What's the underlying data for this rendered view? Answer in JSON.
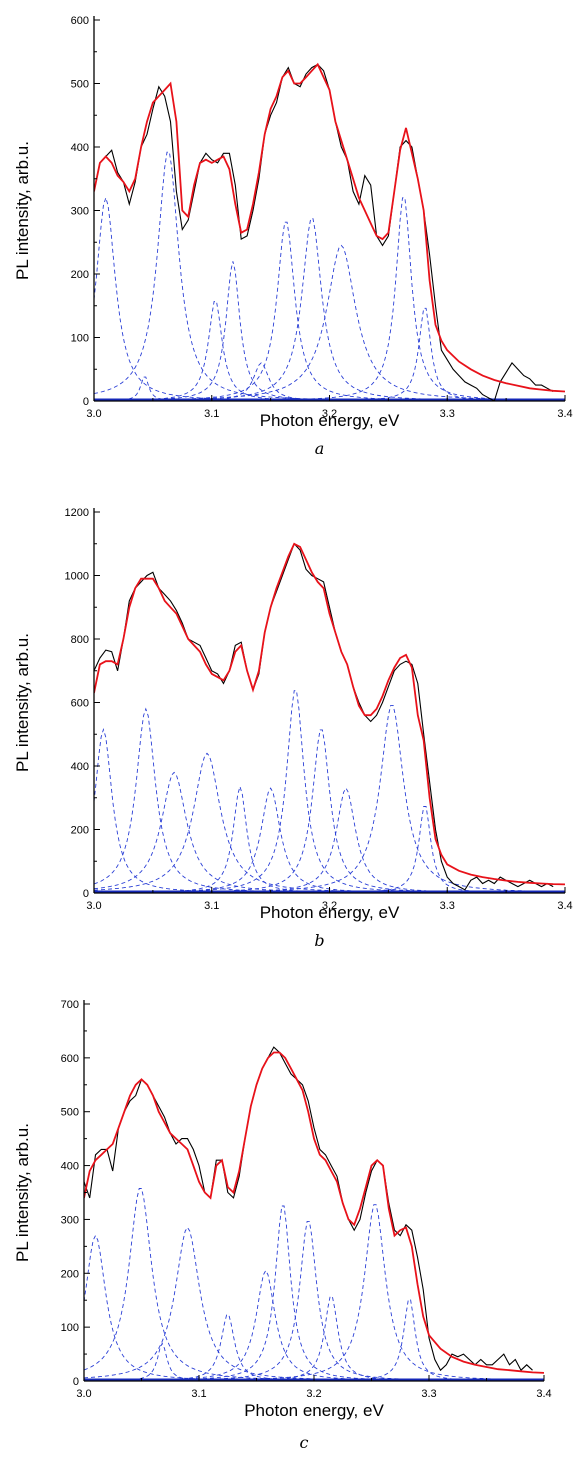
{
  "chart_data": [
    {
      "type": "line",
      "panel_label": "a",
      "xlabel": "Photon energy, eV",
      "ylabel": "PL intensity, arb.u.",
      "xlim": [
        3.0,
        3.4
      ],
      "ylim": [
        0,
        600
      ],
      "xticks": [
        "3.0",
        "3.1",
        "3.2",
        "3.3",
        "3.4"
      ],
      "yticks": [
        "0",
        "100",
        "200",
        "300",
        "400",
        "500",
        "600"
      ],
      "grid": false,
      "series": [
        {
          "color": "#000000",
          "x": [
            3.0,
            3.005,
            3.01,
            3.015,
            3.02,
            3.025,
            3.03,
            3.035,
            3.04,
            3.045,
            3.05,
            3.055,
            3.06,
            3.065,
            3.07,
            3.075,
            3.08,
            3.085,
            3.09,
            3.095,
            3.1,
            3.105,
            3.11,
            3.115,
            3.12,
            3.125,
            3.13,
            3.135,
            3.14,
            3.145,
            3.15,
            3.155,
            3.16,
            3.165,
            3.17,
            3.175,
            3.18,
            3.185,
            3.19,
            3.195,
            3.2,
            3.205,
            3.21,
            3.215,
            3.22,
            3.225,
            3.23,
            3.235,
            3.24,
            3.245,
            3.25,
            3.255,
            3.26,
            3.265,
            3.27,
            3.275,
            3.28,
            3.285,
            3.29,
            3.295,
            3.3,
            3.305,
            3.31,
            3.315,
            3.32,
            3.325,
            3.33,
            3.335,
            3.34,
            3.345,
            3.35,
            3.355,
            3.36,
            3.365,
            3.37,
            3.375,
            3.38,
            3.385,
            3.39
          ],
          "y": [
            330,
            375,
            385,
            395,
            360,
            345,
            310,
            345,
            400,
            420,
            460,
            495,
            480,
            440,
            330,
            270,
            285,
            330,
            375,
            390,
            380,
            375,
            390,
            390,
            340,
            255,
            260,
            300,
            350,
            420,
            450,
            470,
            510,
            525,
            500,
            495,
            515,
            525,
            530,
            520,
            490,
            440,
            400,
            380,
            330,
            310,
            355,
            340,
            260,
            245,
            260,
            330,
            400,
            410,
            400,
            350,
            300,
            230,
            150,
            80,
            65,
            50,
            40,
            30,
            25,
            20,
            10,
            5,
            0,
            30,
            45,
            60,
            50,
            40,
            35,
            25,
            25,
            20,
            15
          ]
        },
        {
          "color": "#e8121a",
          "x": [
            3.0,
            3.005,
            3.01,
            3.015,
            3.02,
            3.025,
            3.03,
            3.035,
            3.04,
            3.045,
            3.05,
            3.055,
            3.06,
            3.065,
            3.07,
            3.075,
            3.08,
            3.085,
            3.09,
            3.095,
            3.1,
            3.105,
            3.11,
            3.115,
            3.12,
            3.125,
            3.13,
            3.135,
            3.14,
            3.145,
            3.15,
            3.155,
            3.16,
            3.165,
            3.17,
            3.175,
            3.18,
            3.185,
            3.19,
            3.195,
            3.2,
            3.205,
            3.21,
            3.215,
            3.22,
            3.225,
            3.23,
            3.235,
            3.24,
            3.245,
            3.25,
            3.255,
            3.26,
            3.265,
            3.27,
            3.275,
            3.28,
            3.285,
            3.29,
            3.295,
            3.3,
            3.31,
            3.32,
            3.33,
            3.34,
            3.35,
            3.36,
            3.37,
            3.38,
            3.39,
            3.4
          ],
          "y": [
            330,
            375,
            385,
            375,
            355,
            345,
            330,
            350,
            400,
            440,
            470,
            480,
            490,
            500,
            440,
            300,
            290,
            340,
            375,
            380,
            375,
            380,
            385,
            365,
            310,
            265,
            270,
            310,
            360,
            420,
            460,
            480,
            510,
            520,
            500,
            500,
            510,
            520,
            530,
            510,
            490,
            440,
            410,
            380,
            350,
            320,
            300,
            280,
            260,
            255,
            265,
            330,
            395,
            430,
            390,
            350,
            300,
            190,
            120,
            95,
            80,
            62,
            50,
            40,
            33,
            28,
            24,
            20,
            18,
            16,
            15
          ]
        }
      ]
    },
    {
      "type": "line",
      "panel_label": "b",
      "xlabel": "Photon energy, eV",
      "ylabel": "PL intensity, arb.u.",
      "xlim": [
        3.0,
        3.4
      ],
      "ylim": [
        0,
        1200
      ],
      "xticks": [
        "3.0",
        "3.1",
        "3.2",
        "3.3",
        "3.4"
      ],
      "yticks": [
        "0",
        "200",
        "400",
        "600",
        "800",
        "1000",
        "1200"
      ],
      "grid": false,
      "series": [
        {
          "color": "#000000",
          "x": [
            3.0,
            3.005,
            3.01,
            3.015,
            3.02,
            3.025,
            3.03,
            3.035,
            3.04,
            3.045,
            3.05,
            3.055,
            3.06,
            3.065,
            3.07,
            3.075,
            3.08,
            3.085,
            3.09,
            3.095,
            3.1,
            3.105,
            3.11,
            3.115,
            3.12,
            3.125,
            3.13,
            3.135,
            3.14,
            3.145,
            3.15,
            3.155,
            3.16,
            3.165,
            3.17,
            3.175,
            3.18,
            3.185,
            3.19,
            3.195,
            3.2,
            3.205,
            3.21,
            3.215,
            3.22,
            3.225,
            3.23,
            3.235,
            3.24,
            3.245,
            3.25,
            3.255,
            3.26,
            3.265,
            3.27,
            3.275,
            3.28,
            3.285,
            3.29,
            3.295,
            3.3,
            3.305,
            3.31,
            3.315,
            3.32,
            3.325,
            3.33,
            3.335,
            3.34,
            3.345,
            3.35,
            3.355,
            3.36,
            3.365,
            3.37,
            3.375,
            3.38,
            3.385,
            3.39
          ],
          "y": [
            700,
            740,
            765,
            760,
            700,
            800,
            920,
            960,
            980,
            1000,
            1010,
            960,
            940,
            920,
            890,
            850,
            800,
            790,
            780,
            740,
            700,
            690,
            660,
            700,
            780,
            790,
            700,
            640,
            690,
            820,
            900,
            950,
            1000,
            1050,
            1100,
            1080,
            1020,
            1000,
            990,
            980,
            900,
            820,
            760,
            720,
            650,
            600,
            560,
            540,
            560,
            600,
            650,
            700,
            720,
            730,
            720,
            660,
            500,
            350,
            200,
            100,
            50,
            30,
            20,
            10,
            40,
            50,
            30,
            40,
            30,
            50,
            40,
            30,
            20,
            30,
            40,
            30,
            20,
            30,
            20
          ]
        },
        {
          "color": "#e8121a",
          "x": [
            3.0,
            3.005,
            3.01,
            3.015,
            3.02,
            3.025,
            3.03,
            3.035,
            3.04,
            3.045,
            3.05,
            3.055,
            3.06,
            3.065,
            3.07,
            3.075,
            3.08,
            3.085,
            3.09,
            3.095,
            3.1,
            3.105,
            3.11,
            3.115,
            3.12,
            3.125,
            3.13,
            3.135,
            3.14,
            3.145,
            3.15,
            3.155,
            3.16,
            3.165,
            3.17,
            3.175,
            3.18,
            3.185,
            3.19,
            3.195,
            3.2,
            3.205,
            3.21,
            3.215,
            3.22,
            3.225,
            3.23,
            3.235,
            3.24,
            3.245,
            3.25,
            3.255,
            3.26,
            3.265,
            3.27,
            3.275,
            3.28,
            3.285,
            3.29,
            3.295,
            3.3,
            3.31,
            3.32,
            3.33,
            3.34,
            3.35,
            3.36,
            3.37,
            3.38,
            3.39,
            3.4
          ],
          "y": [
            630,
            720,
            730,
            730,
            720,
            800,
            900,
            960,
            990,
            990,
            990,
            960,
            920,
            900,
            880,
            840,
            800,
            780,
            760,
            720,
            690,
            680,
            670,
            700,
            760,
            780,
            700,
            640,
            700,
            820,
            900,
            960,
            1010,
            1060,
            1100,
            1090,
            1050,
            1010,
            980,
            960,
            880,
            820,
            760,
            720,
            650,
            590,
            560,
            560,
            580,
            620,
            670,
            710,
            740,
            750,
            710,
            560,
            480,
            300,
            170,
            120,
            90,
            70,
            58,
            50,
            44,
            39,
            35,
            32,
            30,
            28,
            27
          ]
        }
      ]
    },
    {
      "type": "line",
      "panel_label": "c",
      "xlabel": "Photon energy, eV",
      "ylabel": "PL intensity, arb.u.",
      "xlim": [
        3.0,
        3.4
      ],
      "ylim": [
        0,
        700
      ],
      "xticks": [
        "3.0",
        "3.1",
        "3.2",
        "3.3",
        "3.4"
      ],
      "yticks": [
        "0",
        "100",
        "200",
        "300",
        "400",
        "500",
        "600",
        "700"
      ],
      "grid": false,
      "series": [
        {
          "color": "#000000",
          "x": [
            3.0,
            3.005,
            3.01,
            3.015,
            3.02,
            3.025,
            3.03,
            3.035,
            3.04,
            3.045,
            3.05,
            3.055,
            3.06,
            3.065,
            3.07,
            3.075,
            3.08,
            3.085,
            3.09,
            3.095,
            3.1,
            3.105,
            3.11,
            3.115,
            3.12,
            3.125,
            3.13,
            3.135,
            3.14,
            3.145,
            3.15,
            3.155,
            3.16,
            3.165,
            3.17,
            3.175,
            3.18,
            3.185,
            3.19,
            3.195,
            3.2,
            3.205,
            3.21,
            3.215,
            3.22,
            3.225,
            3.23,
            3.235,
            3.24,
            3.245,
            3.25,
            3.255,
            3.26,
            3.265,
            3.27,
            3.275,
            3.28,
            3.285,
            3.29,
            3.295,
            3.3,
            3.305,
            3.31,
            3.315,
            3.32,
            3.325,
            3.33,
            3.335,
            3.34,
            3.345,
            3.35,
            3.355,
            3.36,
            3.365,
            3.37,
            3.375,
            3.38,
            3.385,
            3.39
          ],
          "y": [
            370,
            340,
            420,
            430,
            430,
            390,
            470,
            500,
            520,
            530,
            560,
            550,
            530,
            510,
            490,
            460,
            440,
            450,
            450,
            430,
            400,
            350,
            340,
            410,
            410,
            350,
            340,
            380,
            450,
            510,
            550,
            580,
            600,
            620,
            610,
            590,
            570,
            560,
            550,
            520,
            470,
            430,
            420,
            400,
            380,
            330,
            300,
            280,
            300,
            350,
            390,
            410,
            400,
            330,
            280,
            270,
            290,
            280,
            230,
            170,
            80,
            40,
            20,
            30,
            50,
            45,
            50,
            40,
            30,
            40,
            30,
            30,
            40,
            50,
            30,
            40,
            20,
            30,
            20
          ]
        },
        {
          "color": "#e8121a",
          "x": [
            3.0,
            3.005,
            3.01,
            3.015,
            3.02,
            3.025,
            3.03,
            3.035,
            3.04,
            3.045,
            3.05,
            3.055,
            3.06,
            3.065,
            3.07,
            3.075,
            3.08,
            3.085,
            3.09,
            3.095,
            3.1,
            3.105,
            3.11,
            3.115,
            3.12,
            3.125,
            3.13,
            3.135,
            3.14,
            3.145,
            3.15,
            3.155,
            3.16,
            3.165,
            3.17,
            3.175,
            3.18,
            3.185,
            3.19,
            3.195,
            3.2,
            3.205,
            3.21,
            3.215,
            3.22,
            3.225,
            3.23,
            3.235,
            3.24,
            3.245,
            3.25,
            3.255,
            3.26,
            3.265,
            3.27,
            3.275,
            3.28,
            3.285,
            3.29,
            3.295,
            3.3,
            3.31,
            3.32,
            3.33,
            3.34,
            3.35,
            3.36,
            3.37,
            3.38,
            3.39,
            3.4
          ],
          "y": [
            340,
            390,
            410,
            420,
            430,
            440,
            470,
            500,
            530,
            550,
            560,
            550,
            530,
            500,
            480,
            460,
            450,
            440,
            430,
            400,
            370,
            350,
            340,
            400,
            410,
            360,
            350,
            390,
            450,
            510,
            550,
            580,
            600,
            610,
            610,
            600,
            580,
            560,
            540,
            500,
            450,
            420,
            410,
            390,
            370,
            330,
            300,
            290,
            320,
            360,
            400,
            410,
            400,
            320,
            270,
            280,
            285,
            250,
            180,
            120,
            85,
            60,
            45,
            36,
            30,
            26,
            22,
            20,
            18,
            16,
            15
          ]
        }
      ]
    }
  ]
}
